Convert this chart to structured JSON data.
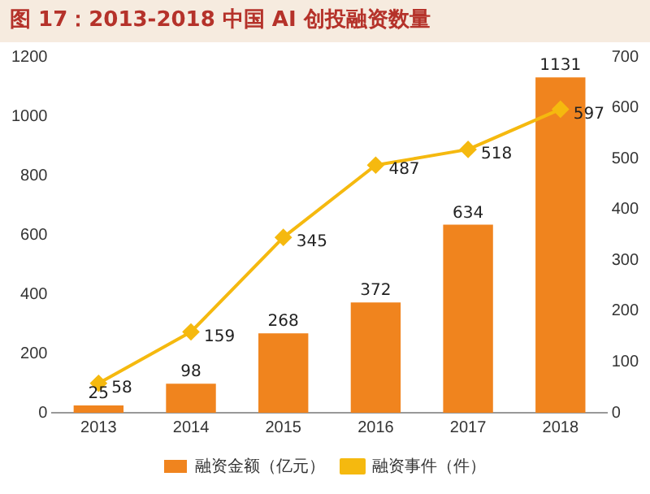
{
  "chart_data": {
    "type": "bar",
    "title": "图 17：2013-2018 中国 AI 创投融资数量",
    "categories": [
      "2013",
      "2014",
      "2015",
      "2016",
      "2017",
      "2018"
    ],
    "series": [
      {
        "name": "融资金额（亿元）",
        "color": "#f0841e",
        "values": [
          25,
          98,
          268,
          372,
          634,
          1131
        ]
      },
      {
        "name": "融资事件（件）",
        "color": "#f5b90f",
        "type": "line",
        "axis": "y2",
        "marker": "diamond",
        "values": [
          58,
          159,
          345,
          487,
          518,
          597
        ]
      }
    ],
    "ylim": [
      0,
      1200
    ],
    "yticks": [
      0,
      200,
      400,
      600,
      800,
      1000,
      1200
    ],
    "y2lim": [
      0,
      700
    ],
    "y2ticks": [
      0,
      100,
      200,
      300,
      400,
      500,
      600,
      700
    ],
    "data_labels": true,
    "grid": false,
    "legend": "bottom"
  }
}
